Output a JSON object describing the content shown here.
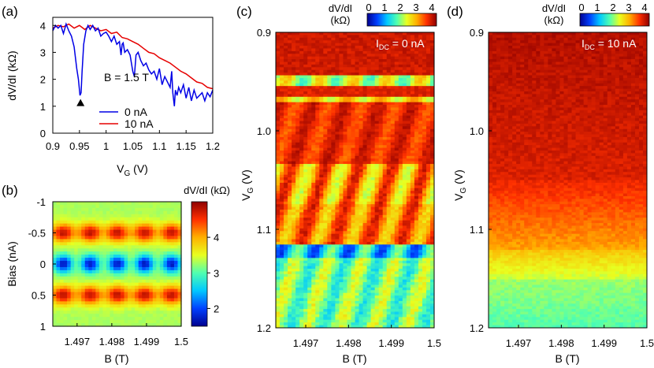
{
  "panel_labels": {
    "a": "(a)",
    "b": "(b)",
    "c": "(c)",
    "d": "(d)"
  },
  "colormap": [
    "#00008f",
    "#0040ff",
    "#00c8ff",
    "#50ffb0",
    "#e8ff20",
    "#ffb000",
    "#ff3000",
    "#8f0000"
  ],
  "chart_data": [
    {
      "panel": "a",
      "type": "line",
      "xlabel_main": "V",
      "xlabel_sub": "G",
      "xlabel_unit": " (V)",
      "ylabel": "dV/dI (kΩ)",
      "xlim": [
        0.9,
        1.2
      ],
      "ylim": [
        0,
        4.3
      ],
      "xticks": [
        "0.9",
        "0.95",
        "1",
        "1.05",
        "1.1",
        "1.15",
        "1.2"
      ],
      "yticks": [
        "0",
        "1",
        "2",
        "3",
        "4"
      ],
      "legend_title": "B = 1.5 T",
      "annotation_marker": {
        "x": 0.952,
        "y": 1.15
      },
      "series": [
        {
          "name": "0 nA",
          "color": "#0000e6",
          "x": [
            0.9,
            0.905,
            0.91,
            0.915,
            0.92,
            0.925,
            0.93,
            0.935,
            0.94,
            0.945,
            0.948,
            0.951,
            0.953,
            0.955,
            0.958,
            0.962,
            0.966,
            0.97,
            0.975,
            0.98,
            0.985,
            0.99,
            0.995,
            1.0,
            1.005,
            1.01,
            1.015,
            1.02,
            1.025,
            1.028,
            1.03,
            1.032,
            1.035,
            1.04,
            1.045,
            1.05,
            1.053,
            1.056,
            1.06,
            1.065,
            1.07,
            1.075,
            1.08,
            1.085,
            1.09,
            1.095,
            1.1,
            1.105,
            1.11,
            1.115,
            1.12,
            1.123,
            1.125,
            1.128,
            1.13,
            1.133,
            1.136,
            1.14,
            1.145,
            1.15,
            1.155,
            1.16,
            1.165,
            1.17,
            1.175,
            1.18,
            1.185,
            1.19,
            1.195,
            1.2
          ],
          "y": [
            3.8,
            4.0,
            3.9,
            4.0,
            3.7,
            4.05,
            3.8,
            3.6,
            3.2,
            2.4,
            2.0,
            1.4,
            1.5,
            2.3,
            3.3,
            3.8,
            4.0,
            3.85,
            4.0,
            3.8,
            3.9,
            3.6,
            3.7,
            3.75,
            3.6,
            3.4,
            3.6,
            3.3,
            3.4,
            2.9,
            3.3,
            3.35,
            3.0,
            3.1,
            2.9,
            2.3,
            2.1,
            2.9,
            3.0,
            2.7,
            2.5,
            2.6,
            2.35,
            2.2,
            2.3,
            2.0,
            2.4,
            1.8,
            2.1,
            1.9,
            1.7,
            2.3,
            1.5,
            1.0,
            1.6,
            1.4,
            1.7,
            1.5,
            1.8,
            1.3,
            1.7,
            1.2,
            1.6,
            1.3,
            1.4,
            1.5,
            1.2,
            1.5,
            1.35,
            1.6
          ]
        },
        {
          "name": "10 nA",
          "color": "#e60000",
          "x": [
            0.9,
            0.91,
            0.92,
            0.93,
            0.94,
            0.95,
            0.96,
            0.97,
            0.98,
            0.99,
            1.0,
            1.01,
            1.02,
            1.03,
            1.04,
            1.05,
            1.06,
            1.07,
            1.08,
            1.09,
            1.1,
            1.11,
            1.12,
            1.13,
            1.14,
            1.15,
            1.16,
            1.17,
            1.18,
            1.19,
            1.2
          ],
          "y": [
            3.9,
            4.0,
            3.95,
            4.05,
            3.9,
            4.0,
            3.85,
            4.0,
            3.9,
            3.8,
            3.85,
            3.7,
            3.75,
            3.55,
            3.5,
            3.4,
            3.3,
            3.15,
            3.0,
            2.95,
            2.8,
            2.7,
            2.6,
            2.45,
            2.3,
            2.2,
            2.05,
            1.9,
            1.85,
            1.7,
            1.65
          ]
        }
      ]
    },
    {
      "panel": "b",
      "type": "heatmap",
      "xlabel": "B (T)",
      "ylabel": "Bias (nA)",
      "xlim": [
        1.4963,
        1.5
      ],
      "ylim": [
        -1,
        1
      ],
      "xticks": [
        "1.497",
        "1.498",
        "1.499",
        "1.5"
      ],
      "yticks": [
        "-1",
        "-0.5",
        "0",
        "0.5",
        "1"
      ],
      "colorbar_title": "dV/dI (kΩ)",
      "colorbar_range": [
        1.5,
        5.0
      ],
      "colorbar_ticks": [
        "2",
        "3",
        "4"
      ],
      "period_T": 0.00078
    },
    {
      "panel": "c",
      "type": "heatmap",
      "xlabel": "B (T)",
      "ylabel_main": "V",
      "ylabel_sub": "G",
      "ylabel_unit": " (V)",
      "xlim": [
        1.4963,
        1.5
      ],
      "ylim": [
        0.9,
        1.2
      ],
      "xticks": [
        "1.497",
        "1.498",
        "1.499",
        "1.5"
      ],
      "yticks": [
        "0.9",
        "1.0",
        "1.1",
        "1.2"
      ],
      "colorbar_title": [
        "dV/dI",
        "(kΩ)"
      ],
      "colorbar_ticks": [
        "0",
        "1",
        "2",
        "3",
        "4"
      ],
      "colorbar_range": [
        0,
        4.4
      ],
      "annotation_main": "I",
      "annotation_sub": "DC",
      "annotation_rest": " = 0 nA"
    },
    {
      "panel": "d",
      "type": "heatmap",
      "xlabel": "B (T)",
      "ylabel_main": "V",
      "ylabel_sub": "G",
      "ylabel_unit": " (V)",
      "xlim": [
        1.4963,
        1.5
      ],
      "ylim": [
        0.9,
        1.2
      ],
      "xticks": [
        "1.497",
        "1.498",
        "1.499",
        "1.5"
      ],
      "yticks": [
        "0.9",
        "1.0",
        "1.1",
        "1.2"
      ],
      "colorbar_title": [
        "dV/dI",
        "(kΩ)"
      ],
      "colorbar_ticks": [
        "0",
        "1",
        "2",
        "3",
        "4"
      ],
      "colorbar_range": [
        0,
        4.4
      ],
      "annotation_main": "I",
      "annotation_sub": "DC",
      "annotation_rest": " = 10 nA"
    }
  ]
}
